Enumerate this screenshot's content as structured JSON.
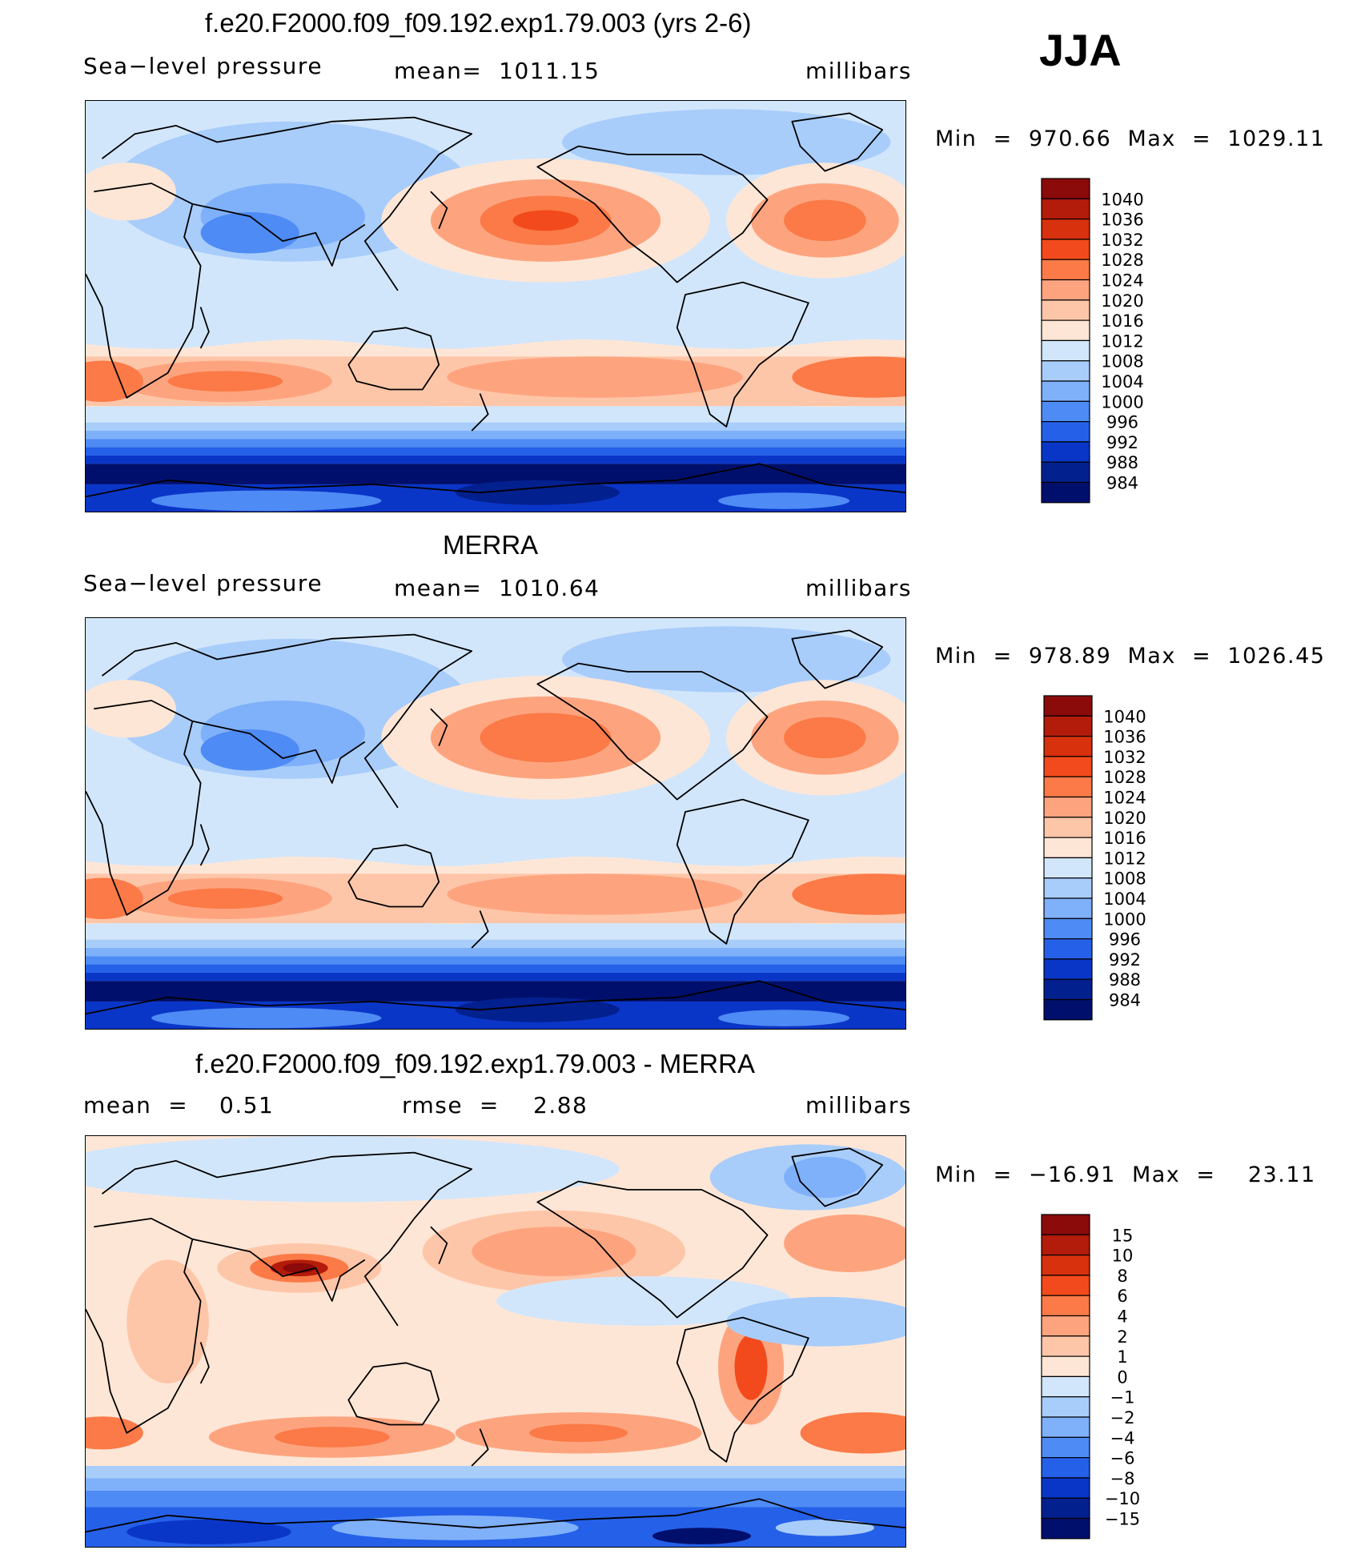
{
  "chart_data": {
    "type": "heatmap",
    "season": "JJA",
    "panels": [
      {
        "id": "model",
        "title": "f.e20.F2000.f09_f09.192.exp1.79.003 (yrs 2-6)",
        "variable_label": "Sea−level pressure",
        "mean_text": "mean=  1011.15",
        "units": "millibars",
        "minmax_text": "Min  =  970.66  Max  =  1029.11",
        "min": 970.66,
        "max": 1029.11,
        "colorbar_levels": [
          "1040",
          "1036",
          "1032",
          "1028",
          "1024",
          "1020",
          "1016",
          "1012",
          "1008",
          "1004",
          "1000",
          "996",
          "992",
          "988",
          "984"
        ],
        "colorbar_colors": [
          "#8b0a0a",
          "#b31b0a",
          "#d8310e",
          "#f24a1c",
          "#fb7a47",
          "#fda47f",
          "#fec6a8",
          "#fee6d6",
          "#d2e6fb",
          "#a8cdfb",
          "#7fb0fa",
          "#4e8bf4",
          "#2560e8",
          "#0a36c8",
          "#03208f",
          "#010f6c"
        ]
      },
      {
        "id": "obs",
        "title": "MERRA",
        "variable_label": "Sea−level pressure",
        "mean_text": "mean=  1010.64",
        "units": "millibars",
        "minmax_text": "Min  =  978.89  Max  =  1026.45",
        "min": 978.89,
        "max": 1026.45,
        "colorbar_levels": [
          "1040",
          "1036",
          "1032",
          "1028",
          "1024",
          "1020",
          "1016",
          "1012",
          "1008",
          "1004",
          "1000",
          "996",
          "992",
          "988",
          "984"
        ],
        "colorbar_colors": [
          "#8b0a0a",
          "#b31b0a",
          "#d8310e",
          "#f24a1c",
          "#fb7a47",
          "#fda47f",
          "#fec6a8",
          "#fee6d6",
          "#d2e6fb",
          "#a8cdfb",
          "#7fb0fa",
          "#4e8bf4",
          "#2560e8",
          "#0a36c8",
          "#03208f",
          "#010f6c"
        ]
      },
      {
        "id": "diff",
        "title": "f.e20.F2000.f09_f09.192.exp1.79.003 - MERRA",
        "mean_label": "mean  =",
        "mean_value": "0.51",
        "rmse_label": "rmse  =",
        "rmse_value": "2.88",
        "units": "millibars",
        "minmax_text": "Min  =  −16.91  Max  =    23.11",
        "min": -16.91,
        "max": 23.11,
        "colorbar_levels": [
          "15",
          "10",
          "8",
          "6",
          "4",
          "2",
          "1",
          "0",
          "−1",
          "−2",
          "−4",
          "−6",
          "−8",
          "−10",
          "−15"
        ],
        "colorbar_colors": [
          "#8b0a0a",
          "#b31b0a",
          "#d8310e",
          "#f24a1c",
          "#fb7a47",
          "#fda47f",
          "#fec6a8",
          "#fee6d6",
          "#d2e6fb",
          "#a8cdfb",
          "#7fb0fa",
          "#4e8bf4",
          "#2560e8",
          "#0a36c8",
          "#03208f",
          "#010f6c"
        ]
      }
    ]
  }
}
